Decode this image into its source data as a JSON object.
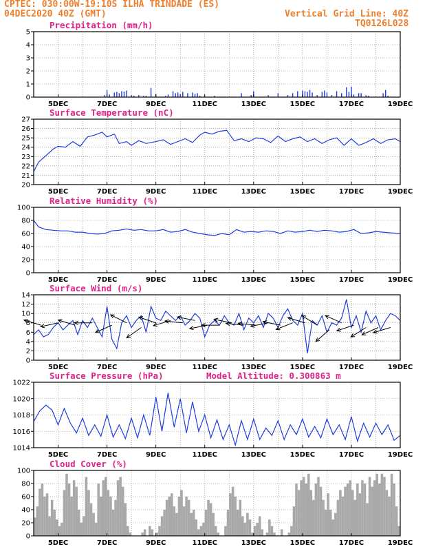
{
  "header": {
    "line1": "CPTEC:   030:00W-19:10S   ILHA TRINDADE (ES)",
    "line2": "04DEC2020 40Z (GMT)",
    "grid_note": "Vertical Grid Line: 40Z",
    "code": "TQ0126L028"
  },
  "colors": {
    "header": "#ee7f2d",
    "title": "#e0218a",
    "line": "#1f3ddc",
    "bar": "#a9a9a9",
    "arrow": "#000000"
  },
  "chart_data": [
    {
      "type": "bar",
      "title": "Precipitation (mm/h)",
      "x_range": [
        4,
        19
      ],
      "ylim": [
        0,
        5
      ],
      "yticks": [
        0,
        1,
        2,
        3,
        4,
        5
      ],
      "xticks": [
        "5DEC",
        "7DEC",
        "9DEC",
        "11DEC",
        "13DEC",
        "15DEC",
        "17DEC",
        "19DEC"
      ],
      "grid": true,
      "x": [
        6.9,
        7.0,
        7.1,
        7.3,
        7.4,
        7.5,
        7.6,
        7.7,
        7.8,
        8.0,
        8.1,
        8.3,
        8.5,
        8.6,
        8.8,
        9.0,
        9.4,
        9.5,
        9.7,
        9.8,
        9.9,
        10.0,
        10.1,
        10.3,
        10.5,
        10.6,
        10.7,
        10.8,
        11.4,
        12.5,
        12.9,
        13.0,
        13.6,
        14.0,
        14.4,
        14.6,
        14.8,
        15.0,
        15.1,
        15.2,
        15.3,
        15.4,
        15.6,
        15.8,
        15.9,
        16.0,
        16.2,
        16.4,
        16.6,
        16.8,
        16.9,
        17.0,
        17.1,
        17.3,
        17.4,
        17.6,
        17.7,
        18.3,
        18.4,
        18.5
      ],
      "values": [
        0.15,
        0.55,
        0.2,
        0.35,
        0.4,
        0.3,
        0.45,
        0.42,
        0.5,
        0.15,
        0.1,
        0.15,
        0.1,
        0.1,
        0.7,
        0.25,
        0.1,
        0.2,
        0.45,
        0.3,
        0.35,
        0.25,
        0.4,
        0.3,
        0.35,
        0.25,
        0.3,
        0.1,
        0.1,
        0.3,
        0.15,
        0.45,
        0.15,
        0.3,
        0.15,
        0.3,
        0.45,
        0.5,
        0.45,
        0.4,
        0.55,
        0.35,
        0.15,
        0.4,
        0.5,
        0.35,
        0.15,
        0.45,
        0.3,
        0.75,
        0.4,
        0.8,
        0.2,
        0.3,
        0.3,
        0.15,
        0.1,
        0.3,
        0.55,
        0.1
      ]
    },
    {
      "type": "line",
      "title": "Surface Temperature (nC)",
      "x_range": [
        4,
        19
      ],
      "ylim": [
        20,
        27
      ],
      "yticks": [
        20,
        21,
        22,
        23,
        24,
        25,
        26,
        27
      ],
      "xticks": [
        "5DEC",
        "7DEC",
        "9DEC",
        "11DEC",
        "13DEC",
        "15DEC",
        "17DEC",
        "19DEC"
      ],
      "grid": true,
      "x": [
        4.0,
        4.2,
        4.5,
        4.8,
        5.0,
        5.3,
        5.6,
        5.9,
        6.2,
        6.5,
        6.8,
        7.0,
        7.3,
        7.5,
        7.8,
        8.0,
        8.3,
        8.6,
        9.0,
        9.3,
        9.6,
        9.9,
        10.2,
        10.5,
        10.8,
        11.0,
        11.3,
        11.6,
        11.9,
        12.2,
        12.5,
        12.8,
        13.1,
        13.4,
        13.7,
        14.0,
        14.3,
        14.6,
        14.9,
        15.2,
        15.5,
        15.8,
        16.1,
        16.4,
        16.7,
        17.0,
        17.3,
        17.6,
        17.9,
        18.2,
        18.5,
        18.8,
        19.0
      ],
      "values": [
        21.4,
        22.4,
        23.1,
        23.8,
        24.1,
        24.0,
        24.6,
        24.1,
        25.1,
        25.3,
        25.6,
        25.1,
        25.4,
        24.4,
        24.6,
        24.2,
        24.7,
        24.4,
        24.6,
        24.8,
        24.3,
        24.6,
        24.9,
        24.5,
        25.3,
        25.6,
        25.4,
        25.7,
        25.8,
        24.7,
        24.9,
        24.6,
        25.0,
        24.9,
        24.5,
        25.2,
        24.6,
        24.9,
        25.1,
        24.6,
        24.9,
        24.4,
        24.8,
        25.0,
        24.2,
        24.9,
        24.2,
        24.5,
        24.9,
        24.4,
        24.8,
        24.9,
        24.6
      ]
    },
    {
      "type": "line",
      "title": "Relative Humidity (%)",
      "x_range": [
        4,
        19
      ],
      "ylim": [
        0,
        100
      ],
      "yticks": [
        0,
        20,
        40,
        60,
        80,
        100
      ],
      "xticks": [
        "5DEC",
        "7DEC",
        "9DEC",
        "11DEC",
        "13DEC",
        "15DEC",
        "17DEC",
        "19DEC"
      ],
      "grid": true,
      "x": [
        4.0,
        4.2,
        4.5,
        4.8,
        5.1,
        5.4,
        5.7,
        6.0,
        6.3,
        6.6,
        6.9,
        7.2,
        7.5,
        7.8,
        8.1,
        8.4,
        8.7,
        9.0,
        9.3,
        9.6,
        9.9,
        10.2,
        10.5,
        10.8,
        11.1,
        11.4,
        11.7,
        12.0,
        12.3,
        12.6,
        12.9,
        13.2,
        13.5,
        13.8,
        14.1,
        14.4,
        14.7,
        15.0,
        15.3,
        15.6,
        15.9,
        16.2,
        16.5,
        16.8,
        17.1,
        17.4,
        17.7,
        18.0,
        18.3,
        18.6,
        19.0
      ],
      "values": [
        80,
        70,
        66,
        65,
        64,
        64,
        62,
        62,
        60,
        59,
        60,
        64,
        65,
        67,
        65,
        66,
        64,
        64,
        66,
        62,
        63,
        66,
        62,
        60,
        58,
        57,
        60,
        58,
        66,
        62,
        63,
        62,
        64,
        63,
        60,
        64,
        62,
        63,
        65,
        63,
        65,
        64,
        62,
        63,
        66,
        60,
        61,
        63,
        62,
        61,
        60
      ]
    },
    {
      "type": "line",
      "title": "Surface Wind (m/s)",
      "x_range": [
        4,
        19
      ],
      "ylim": [
        0,
        14
      ],
      "yticks": [
        0,
        2,
        4,
        6,
        8,
        10,
        12,
        14
      ],
      "xticks": [
        "5DEC",
        "7DEC",
        "9DEC",
        "11DEC",
        "13DEC",
        "15DEC",
        "17DEC",
        "19DEC"
      ],
      "grid": true,
      "x": [
        4.0,
        4.2,
        4.4,
        4.6,
        4.8,
        5.0,
        5.2,
        5.4,
        5.6,
        5.8,
        6.0,
        6.2,
        6.4,
        6.6,
        6.8,
        7.0,
        7.2,
        7.4,
        7.6,
        7.8,
        8.0,
        8.2,
        8.4,
        8.6,
        8.8,
        9.0,
        9.2,
        9.4,
        9.6,
        9.8,
        10.0,
        10.2,
        10.4,
        10.6,
        10.8,
        11.0,
        11.2,
        11.4,
        11.6,
        11.8,
        12.0,
        12.2,
        12.4,
        12.6,
        12.8,
        13.0,
        13.2,
        13.4,
        13.6,
        13.8,
        14.0,
        14.2,
        14.4,
        14.6,
        14.8,
        15.0,
        15.2,
        15.4,
        15.6,
        15.8,
        16.0,
        16.2,
        16.4,
        16.6,
        16.8,
        17.0,
        17.2,
        17.4,
        17.6,
        17.8,
        18.0,
        18.2,
        18.4,
        18.6,
        18.8,
        19.0
      ],
      "values": [
        5.5,
        6.5,
        5.0,
        5.5,
        7.0,
        8.0,
        6.5,
        7.5,
        8.5,
        5.5,
        8.5,
        7.0,
        9.0,
        7.0,
        5.0,
        11.5,
        4.5,
        2.5,
        8.0,
        9.5,
        7.0,
        8.5,
        9.5,
        6.0,
        11.5,
        9.0,
        8.5,
        10.5,
        9.5,
        8.5,
        9.5,
        7.5,
        8.5,
        10.0,
        9.0,
        5.0,
        7.5,
        8.5,
        7.5,
        9.5,
        8.0,
        7.5,
        10.0,
        6.5,
        9.0,
        8.0,
        9.5,
        7.0,
        10.0,
        9.0,
        7.0,
        9.5,
        11.0,
        8.5,
        7.5,
        10.0,
        1.5,
        8.5,
        7.5,
        9.5,
        6.0,
        8.0,
        7.5,
        9.0,
        13.0,
        7.0,
        9.5,
        6.0,
        10.5,
        8.0,
        9.5,
        6.5,
        8.5,
        10.0,
        9.5,
        8.5
      ],
      "arrows": {
        "x": [
          4.3,
          5.0,
          5.7,
          6.4,
          7.2,
          7.8,
          8.4,
          9.0,
          9.6,
          10.1,
          10.6,
          11.1,
          11.6,
          12.1,
          12.6,
          13.1,
          13.6,
          14.1,
          14.6,
          15.1,
          15.6,
          16.1,
          16.6,
          17.1,
          17.6,
          18.1,
          18.6
        ],
        "y": [
          7.5,
          8.0,
          7.5,
          8.0,
          7.5,
          8.0,
          7.0,
          8.0,
          8.5,
          8.0,
          8.5,
          7.5,
          7.5,
          8.0,
          7.5,
          7.5,
          8.0,
          7.5,
          8.0,
          8.0,
          7.5,
          6.5,
          8.0,
          7.5,
          7.0,
          7.0,
          7.0
        ],
        "u": [
          -1.0,
          -0.9,
          -1.0,
          -1.0,
          -0.9,
          -0.8,
          -0.7,
          -0.9,
          -1.0,
          -1.0,
          -1.0,
          -1.0,
          -1.0,
          -1.0,
          -1.0,
          -1.0,
          -1.0,
          -1.0,
          -1.0,
          -1.0,
          -0.8,
          -0.7,
          -0.9,
          -0.9,
          -0.8,
          -0.9,
          -1.0
        ],
        "v": [
          0.3,
          -0.2,
          0.3,
          0.0,
          -0.4,
          0.4,
          -0.5,
          0.3,
          -0.3,
          0.1,
          0.2,
          -0.2,
          0.0,
          0.2,
          0.1,
          0.1,
          -0.2,
          0.2,
          -0.4,
          0.3,
          0.5,
          -0.6,
          0.4,
          -0.3,
          -0.5,
          -0.4,
          -0.3
        ]
      }
    },
    {
      "type": "line",
      "title": "Surface Pressure (hPa)",
      "annotation": "Model Altitude: 0.300863 m",
      "x_range": [
        4,
        19
      ],
      "ylim": [
        1014,
        1022
      ],
      "yticks": [
        1014,
        1016,
        1018,
        1020,
        1022
      ],
      "xticks": [
        "5DEC",
        "7DEC",
        "9DEC",
        "11DEC",
        "13DEC",
        "15DEC",
        "17DEC",
        "19DEC"
      ],
      "grid": true,
      "x": [
        4.0,
        4.25,
        4.5,
        4.75,
        5.0,
        5.25,
        5.5,
        5.75,
        6.0,
        6.25,
        6.5,
        6.75,
        7.0,
        7.25,
        7.5,
        7.75,
        8.0,
        8.25,
        8.5,
        8.75,
        9.0,
        9.25,
        9.5,
        9.75,
        10.0,
        10.25,
        10.5,
        10.75,
        11.0,
        11.25,
        11.5,
        11.75,
        12.0,
        12.25,
        12.5,
        12.75,
        13.0,
        13.25,
        13.5,
        13.75,
        14.0,
        14.25,
        14.5,
        14.75,
        15.0,
        15.25,
        15.5,
        15.75,
        16.0,
        16.25,
        16.5,
        16.75,
        17.0,
        17.25,
        17.5,
        17.75,
        18.0,
        18.25,
        18.5,
        18.75,
        19.0
      ],
      "values": [
        1017.2,
        1018.5,
        1019.2,
        1018.6,
        1016.8,
        1018.8,
        1017.0,
        1015.8,
        1017.6,
        1015.5,
        1016.8,
        1015.4,
        1018.0,
        1015.3,
        1016.8,
        1015.1,
        1017.6,
        1015.2,
        1018.0,
        1015.5,
        1020.2,
        1016.0,
        1020.7,
        1016.5,
        1020.0,
        1015.8,
        1019.6,
        1016.0,
        1018.0,
        1015.2,
        1017.4,
        1015.0,
        1016.8,
        1014.3,
        1017.3,
        1015.0,
        1017.5,
        1015.0,
        1016.4,
        1015.5,
        1017.3,
        1015.0,
        1016.8,
        1015.6,
        1017.5,
        1015.3,
        1016.6,
        1015.2,
        1017.5,
        1015.6,
        1016.8,
        1015.0,
        1017.8,
        1014.8,
        1017.0,
        1015.3,
        1017.0,
        1015.6,
        1016.8,
        1014.9,
        1015.5
      ]
    },
    {
      "type": "bar",
      "title": "Cloud Cover (%)",
      "x_range": [
        4,
        19
      ],
      "ylim": [
        0,
        100
      ],
      "yticks": [
        0,
        20,
        40,
        60,
        80,
        100
      ],
      "xticks": [
        "5DEC",
        "7DEC",
        "9DEC",
        "11DEC",
        "13DEC",
        "15DEC",
        "17DEC",
        "19DEC"
      ],
      "grid": true,
      "x": [
        4.05,
        4.15,
        4.25,
        4.35,
        4.45,
        4.55,
        4.65,
        4.75,
        4.85,
        4.95,
        5.05,
        5.15,
        5.25,
        5.35,
        5.45,
        5.55,
        5.65,
        5.75,
        5.85,
        5.95,
        6.05,
        6.15,
        6.25,
        6.35,
        6.45,
        6.55,
        6.65,
        6.75,
        6.85,
        6.95,
        7.05,
        7.15,
        7.25,
        7.35,
        7.45,
        7.55,
        7.65,
        7.75,
        7.85,
        7.95,
        8.05,
        8.15,
        8.25,
        8.35,
        8.45,
        8.55,
        8.65,
        8.75,
        8.85,
        8.95,
        9.05,
        9.15,
        9.25,
        9.35,
        9.45,
        9.55,
        9.65,
        9.75,
        9.85,
        9.95,
        10.05,
        10.15,
        10.25,
        10.35,
        10.45,
        10.55,
        10.65,
        10.75,
        10.85,
        10.95,
        11.05,
        11.15,
        11.25,
        11.35,
        11.45,
        11.55,
        11.65,
        11.75,
        11.85,
        11.95,
        12.05,
        12.15,
        12.25,
        12.35,
        12.45,
        12.55,
        12.65,
        12.75,
        12.85,
        12.95,
        13.05,
        13.15,
        13.25,
        13.35,
        13.45,
        13.55,
        13.65,
        13.75,
        13.85,
        13.95,
        14.05,
        14.15,
        14.25,
        14.35,
        14.45,
        14.55,
        14.65,
        14.75,
        14.85,
        14.95,
        15.05,
        15.15,
        15.25,
        15.35,
        15.45,
        15.55,
        15.65,
        15.75,
        15.85,
        15.95,
        16.05,
        16.15,
        16.25,
        16.35,
        16.45,
        16.55,
        16.65,
        16.75,
        16.85,
        16.95,
        17.05,
        17.15,
        17.25,
        17.35,
        17.45,
        17.55,
        17.65,
        17.75,
        17.85,
        17.95,
        18.05,
        18.15,
        18.25,
        18.35,
        18.45,
        18.55,
        18.65,
        18.75,
        18.85,
        18.95
      ],
      "values": [
        28,
        45,
        72,
        80,
        60,
        65,
        30,
        55,
        40,
        25,
        15,
        20,
        70,
        95,
        80,
        60,
        85,
        75,
        40,
        20,
        30,
        90,
        70,
        50,
        35,
        20,
        80,
        60,
        85,
        90,
        70,
        60,
        40,
        55,
        85,
        90,
        75,
        50,
        15,
        5,
        0,
        0,
        0,
        0,
        5,
        10,
        0,
        15,
        10,
        0,
        5,
        15,
        30,
        40,
        55,
        60,
        65,
        45,
        35,
        60,
        70,
        45,
        60,
        55,
        35,
        40,
        25,
        10,
        15,
        20,
        40,
        55,
        50,
        35,
        15,
        5,
        0,
        0,
        15,
        40,
        65,
        75,
        60,
        40,
        55,
        30,
        20,
        35,
        25,
        5,
        15,
        20,
        30,
        10,
        0,
        5,
        25,
        15,
        5,
        0,
        0,
        10,
        0,
        0,
        5,
        15,
        45,
        80,
        70,
        85,
        90,
        80,
        95,
        70,
        55,
        80,
        90,
        75,
        55,
        40,
        65,
        40,
        25,
        35,
        55,
        70,
        60,
        75,
        80,
        85,
        70,
        55,
        80,
        65,
        85,
        80,
        50,
        90,
        75,
        85,
        95,
        80,
        95,
        90,
        70,
        60,
        95,
        80,
        45,
        15
      ]
    }
  ]
}
